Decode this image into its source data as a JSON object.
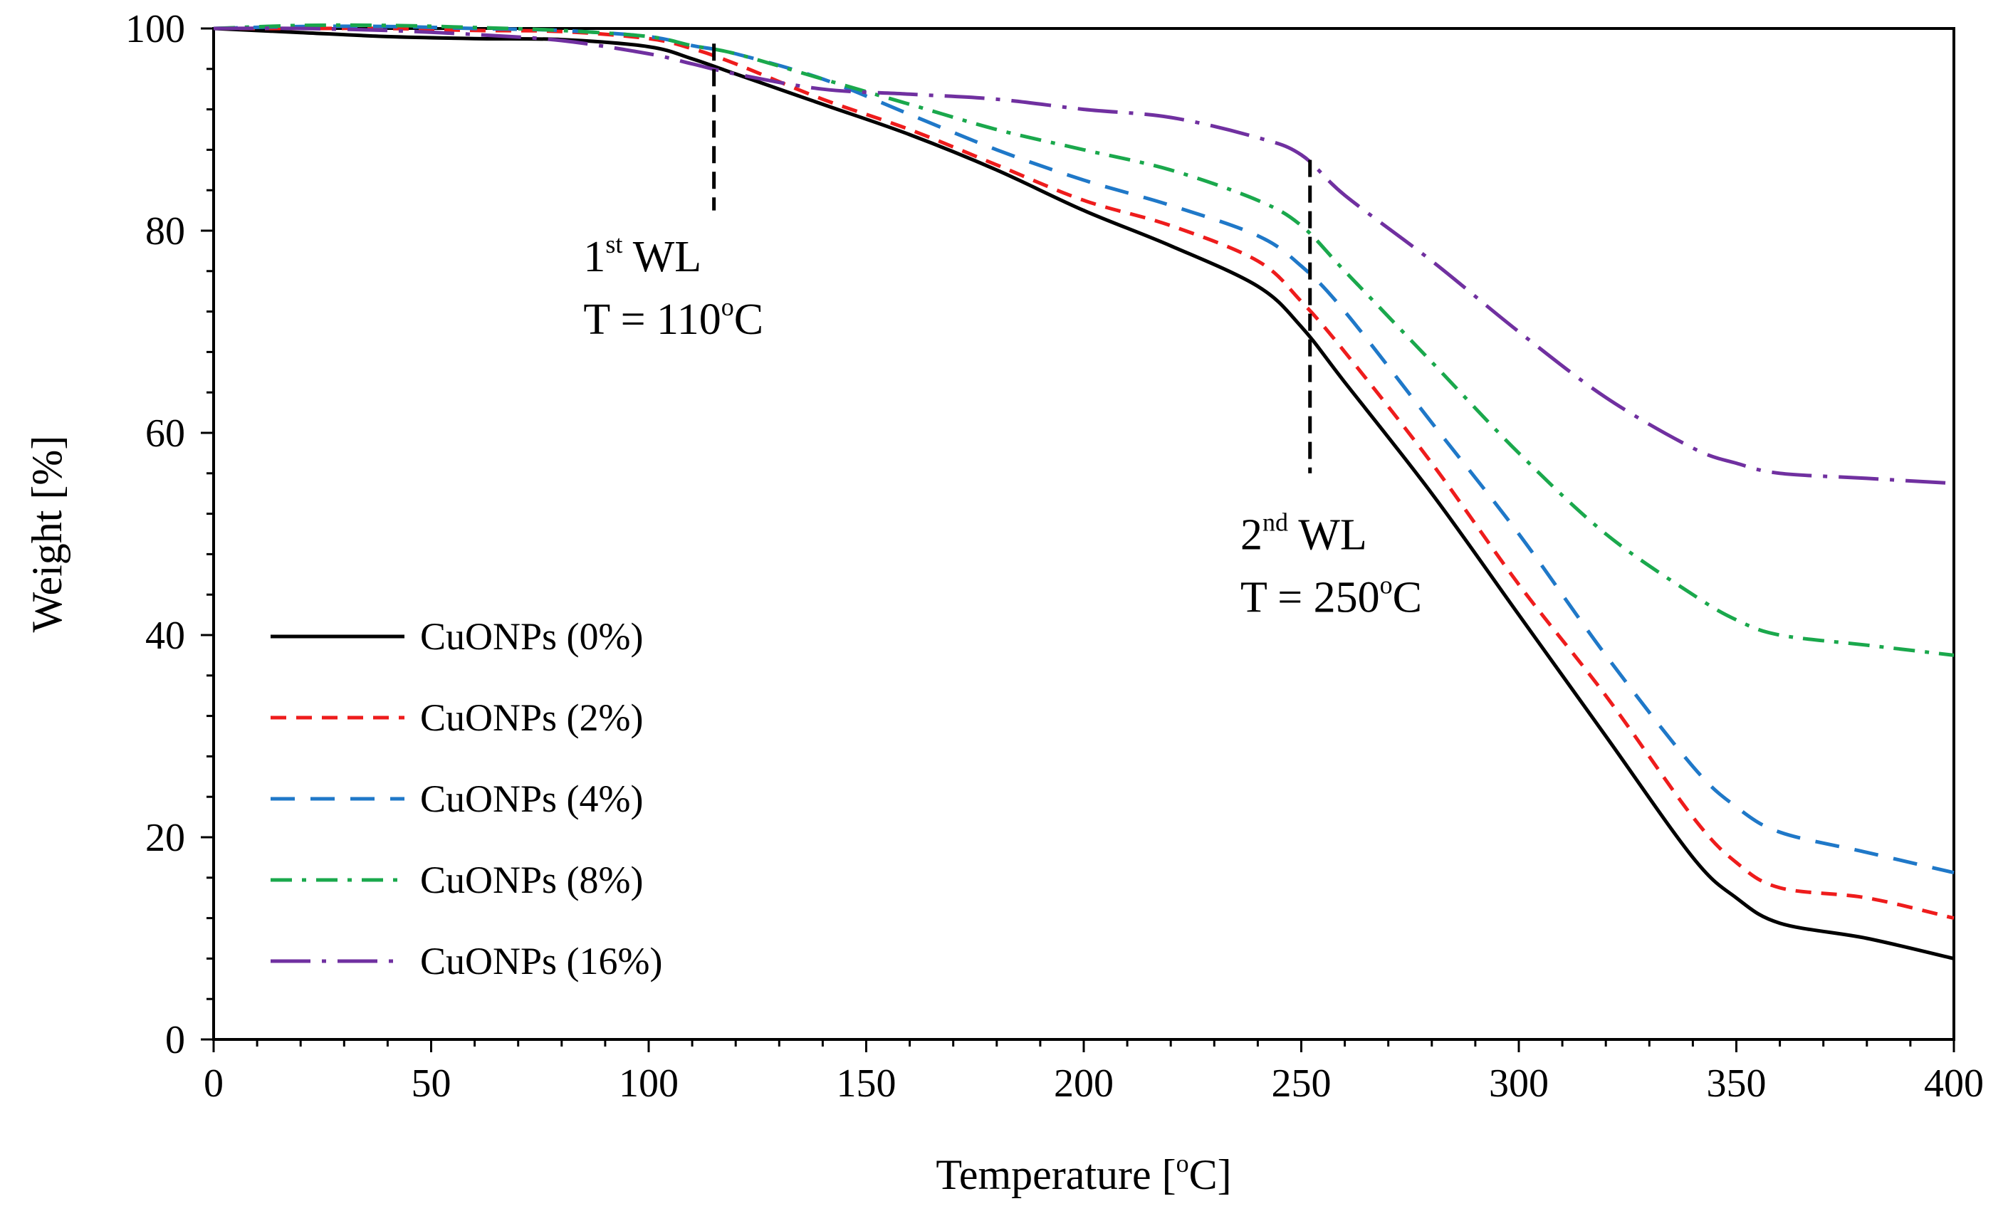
{
  "chart_data": {
    "type": "line",
    "title": "",
    "xlabel": "Temperature [",
    "xlabel_sup": "o",
    "xlabel_tail": "C]",
    "ylabel": "Weight [%]",
    "xlim": [
      0,
      400
    ],
    "ylim": [
      0,
      100
    ],
    "xticks": [
      0,
      50,
      100,
      150,
      200,
      250,
      300,
      350,
      400
    ],
    "yticks": [
      0,
      20,
      40,
      60,
      80,
      100
    ],
    "grid": false,
    "legend_position": "bottom-left",
    "series": [
      {
        "name": "CuONPs (0%)",
        "color": "#000000",
        "dash": "solid",
        "x": [
          0,
          20,
          40,
          60,
          80,
          100,
          110,
          120,
          140,
          160,
          180,
          200,
          220,
          240,
          250,
          260,
          280,
          300,
          320,
          340,
          350,
          360,
          380,
          400
        ],
        "y": [
          100,
          99.6,
          99.2,
          99,
          98.9,
          98.2,
          97,
          95.5,
          92.5,
          89.5,
          86,
          82,
          78.5,
          74.5,
          70.5,
          65,
          54,
          42,
          30,
          18,
          14,
          11.5,
          10,
          8
        ]
      },
      {
        "name": "CuONPs (2%)",
        "color": "#ee1c1c",
        "dash": "dashed",
        "x": [
          0,
          20,
          40,
          60,
          80,
          100,
          110,
          120,
          140,
          160,
          180,
          200,
          220,
          240,
          250,
          260,
          280,
          300,
          320,
          340,
          350,
          360,
          380,
          400
        ],
        "y": [
          100,
          100,
          100,
          99.8,
          99.7,
          99,
          98,
          96.5,
          93,
          90,
          86.5,
          83,
          80.5,
          77,
          73,
          68,
          57,
          45,
          34,
          22,
          17.5,
          15,
          14,
          12
        ]
      },
      {
        "name": "CuONPs (4%)",
        "color": "#1f78c8",
        "dash": "dashed-long",
        "x": [
          0,
          20,
          40,
          60,
          80,
          100,
          110,
          120,
          140,
          160,
          180,
          200,
          220,
          240,
          250,
          260,
          280,
          300,
          320,
          340,
          350,
          360,
          380,
          400
        ],
        "y": [
          100,
          100.2,
          100.2,
          100,
          99.8,
          99.2,
          98.3,
          97.5,
          95,
          91.5,
          88,
          85,
          82.5,
          79.5,
          76.5,
          72,
          61,
          50,
          38,
          27,
          23,
          20.5,
          18.5,
          16.5
        ]
      },
      {
        "name": "CuONPs (8%)",
        "color": "#1aa84c",
        "dash": "dash-dot",
        "x": [
          0,
          20,
          40,
          60,
          80,
          100,
          110,
          120,
          140,
          160,
          180,
          200,
          220,
          240,
          250,
          260,
          280,
          300,
          320,
          340,
          350,
          360,
          380,
          400
        ],
        "y": [
          100,
          100.3,
          100.3,
          100.1,
          99.8,
          99.2,
          98.3,
          97.5,
          95,
          92.5,
          90,
          88,
          86,
          83,
          80.5,
          76,
          67,
          58,
          50,
          44,
          41.5,
          40,
          39,
          38
        ]
      },
      {
        "name": "CuONPs (16%)",
        "color": "#7030a0",
        "dash": "long-dash-dot",
        "x": [
          0,
          20,
          40,
          60,
          80,
          100,
          110,
          120,
          140,
          160,
          180,
          200,
          220,
          240,
          250,
          260,
          280,
          300,
          320,
          340,
          350,
          360,
          380,
          400
        ],
        "y": [
          100,
          100,
          99.8,
          99.4,
          98.8,
          97.5,
          96.5,
          95.5,
          94,
          93.5,
          93,
          92,
          91.2,
          89.2,
          87.5,
          83.5,
          77,
          70,
          63.5,
          58.5,
          57,
          56,
          55.5,
          55
        ]
      }
    ],
    "annotations": [
      {
        "line1": "1",
        "line1_sup": "st",
        "line1_tail": " WL",
        "line2": "T = 110",
        "line2_sup": "o",
        "line2_tail": "C",
        "x": 115,
        "y_top": 98.5,
        "y_bottom": 82,
        "text_x": 85,
        "text_y": 76
      },
      {
        "line1": "2",
        "line1_sup": "nd",
        "line1_tail": " WL",
        "line2": "T = 250",
        "line2_sup": "o",
        "line2_tail": "C",
        "x": 252,
        "y_top": 87,
        "y_bottom": 56,
        "text_x": 236,
        "text_y": 48.5
      }
    ]
  }
}
